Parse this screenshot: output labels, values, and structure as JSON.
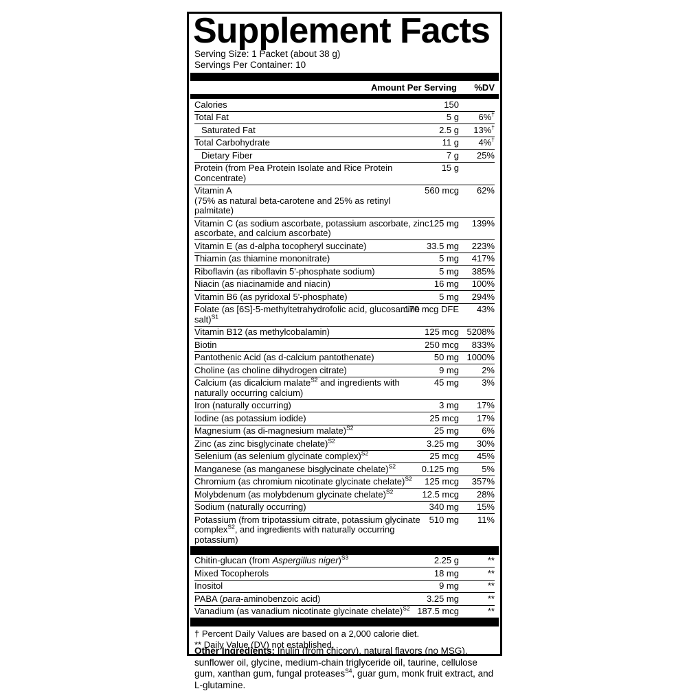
{
  "colors": {
    "ink": "#000000",
    "paper": "#ffffff"
  },
  "label": {
    "title": "Supplement Facts",
    "serving_size": "Serving Size: 1 Packet (about 38 g)",
    "servings_per_container": "Servings Per Container: 10",
    "columns": {
      "amount": "Amount Per Serving",
      "dv": "%DV"
    },
    "rows": [
      {
        "parts": [
          {
            "t": "Calories"
          }
        ],
        "amount": "150",
        "dv": ""
      },
      {
        "parts": [
          {
            "t": "Total Fat"
          }
        ],
        "amount": "5 g",
        "dv": "6%",
        "dv_sup": "†"
      },
      {
        "parts": [
          {
            "t": "Saturated Fat"
          }
        ],
        "amount": "2.5 g",
        "dv": "13%",
        "dv_sup": "†",
        "indent": true
      },
      {
        "parts": [
          {
            "t": "Total Carbohydrate"
          }
        ],
        "amount": "11 g",
        "dv": "4%",
        "dv_sup": "†"
      },
      {
        "parts": [
          {
            "t": "Dietary Fiber"
          }
        ],
        "amount": "7 g",
        "dv": "25%",
        "indent": true
      },
      {
        "parts": [
          {
            "t": "Protein (from Pea Protein Isolate and Rice Protein Concentrate)"
          }
        ],
        "amount": "15 g",
        "dv": ""
      },
      {
        "parts": [
          {
            "t": "Vitamin A"
          },
          {
            "br": true
          },
          {
            "t": "(75% as natural beta-carotene and 25% as retinyl palmitate)"
          }
        ],
        "amount": "560 mcg",
        "dv": "62%"
      },
      {
        "parts": [
          {
            "t": "Vitamin C (as sodium ascorbate, potassium ascorbate, zinc ascorbate, and calcium ascorbate)"
          }
        ],
        "amount": "125 mg",
        "dv": "139%"
      },
      {
        "parts": [
          {
            "t": "Vitamin E (as d-alpha tocopheryl succinate)"
          }
        ],
        "amount": "33.5 mg",
        "dv": "223%"
      },
      {
        "parts": [
          {
            "t": "Thiamin (as thiamine mononitrate)"
          }
        ],
        "amount": "5 mg",
        "dv": "417%"
      },
      {
        "parts": [
          {
            "t": "Riboflavin (as riboflavin 5'-phosphate sodium)"
          }
        ],
        "amount": "5 mg",
        "dv": "385%"
      },
      {
        "parts": [
          {
            "t": "Niacin (as niacinamide and niacin)"
          }
        ],
        "amount": "16 mg",
        "dv": "100%"
      },
      {
        "parts": [
          {
            "t": "Vitamin B6 (as pyridoxal 5'-phosphate)"
          }
        ],
        "amount": "5 mg",
        "dv": "294%"
      },
      {
        "parts": [
          {
            "t": "Folate (as [6S]-5-methyltetrahydrofolic acid, glucosamine salt)"
          },
          {
            "t": "S1",
            "sup": true
          }
        ],
        "amount": "170 mcg DFE",
        "dv": "43%"
      },
      {
        "parts": [
          {
            "t": "Vitamin B12 (as methylcobalamin)"
          }
        ],
        "amount": "125 mcg",
        "dv": "5208%"
      },
      {
        "parts": [
          {
            "t": "Biotin"
          }
        ],
        "amount": "250 mcg",
        "dv": "833%"
      },
      {
        "parts": [
          {
            "t": "Pantothenic Acid (as d-calcium pantothenate)"
          }
        ],
        "amount": "50 mg",
        "dv": "1000%"
      },
      {
        "parts": [
          {
            "t": "Choline (as choline dihydrogen citrate)"
          }
        ],
        "amount": "9 mg",
        "dv": "2%"
      },
      {
        "parts": [
          {
            "t": "Calcium (as dicalcium malate"
          },
          {
            "t": "S2",
            "sup": true
          },
          {
            "t": " and ingredients with naturally occurring calcium)"
          }
        ],
        "amount": "45 mg",
        "dv": "3%"
      },
      {
        "parts": [
          {
            "t": "Iron (naturally occurring)"
          }
        ],
        "amount": "3 mg",
        "dv": "17%"
      },
      {
        "parts": [
          {
            "t": "Iodine (as potassium iodide)"
          }
        ],
        "amount": "25 mcg",
        "dv": "17%"
      },
      {
        "parts": [
          {
            "t": "Magnesium (as di-magnesium malate)"
          },
          {
            "t": "S2",
            "sup": true
          }
        ],
        "amount": "25 mg",
        "dv": "6%"
      },
      {
        "parts": [
          {
            "t": "Zinc (as zinc bisglycinate chelate)"
          },
          {
            "t": "S2",
            "sup": true
          }
        ],
        "amount": "3.25 mg",
        "dv": "30%"
      },
      {
        "parts": [
          {
            "t": "Selenium (as selenium glycinate complex)"
          },
          {
            "t": "S2",
            "sup": true
          }
        ],
        "amount": "25 mcg",
        "dv": "45%"
      },
      {
        "parts": [
          {
            "t": "Manganese (as manganese bisglycinate chelate)"
          },
          {
            "t": "S2",
            "sup": true
          }
        ],
        "amount": "0.125 mg",
        "dv": "5%"
      },
      {
        "parts": [
          {
            "t": "Chromium (as chromium nicotinate glycinate chelate)"
          },
          {
            "t": "S2",
            "sup": true
          }
        ],
        "amount": "125 mcg",
        "dv": "357%"
      },
      {
        "parts": [
          {
            "t": "Molybdenum (as molybdenum glycinate chelate)"
          },
          {
            "t": "S2",
            "sup": true
          }
        ],
        "amount": "12.5 mcg",
        "dv": "28%"
      },
      {
        "parts": [
          {
            "t": "Sodium (naturally occurring)"
          }
        ],
        "amount": "340 mg",
        "dv": "15%"
      },
      {
        "parts": [
          {
            "t": "Potassium (from tripotassium citrate, potassium glycinate complex"
          },
          {
            "t": "S2",
            "sup": true
          },
          {
            "t": ", and ingredients with naturally occurring potassium)"
          }
        ],
        "amount": "510 mg",
        "dv": "11%"
      }
    ],
    "extra_rows": [
      {
        "parts": [
          {
            "t": "Chitin-glucan (from "
          },
          {
            "t": "Aspergillus niger",
            "i": true
          },
          {
            "t": ")"
          },
          {
            "t": "S3",
            "sup": true
          }
        ],
        "amount": "2.25 g",
        "dv": "**"
      },
      {
        "parts": [
          {
            "t": "Mixed Tocopherols"
          }
        ],
        "amount": "18 mg",
        "dv": "**"
      },
      {
        "parts": [
          {
            "t": "Inositol"
          }
        ],
        "amount": "9 mg",
        "dv": "**"
      },
      {
        "parts": [
          {
            "t": "PABA ("
          },
          {
            "t": "para",
            "i": true
          },
          {
            "t": "-aminobenzoic acid)"
          }
        ],
        "amount": "3.25 mg",
        "dv": "**"
      },
      {
        "parts": [
          {
            "t": "Vanadium (as vanadium nicotinate glycinate chelate)"
          },
          {
            "t": "S2",
            "sup": true
          }
        ],
        "amount": "187.5 mcg",
        "dv": "**"
      }
    ],
    "footnotes": [
      "† Percent Daily Values are based on a 2,000 calorie diet.",
      "** Daily Value (DV) not established."
    ]
  },
  "other_ingredients": {
    "parts": [
      {
        "t": "Other Ingredients:",
        "b": true
      },
      {
        "t": " Inulin (from chicory), natural flavors (no MSG), sunflower oil, glycine, medium-chain triglyceride oil, taurine, cellulose gum, xanthan gum, fungal proteases"
      },
      {
        "t": "S4",
        "sup": true
      },
      {
        "t": ", guar gum, monk fruit extract, and L-glutamine."
      }
    ]
  }
}
